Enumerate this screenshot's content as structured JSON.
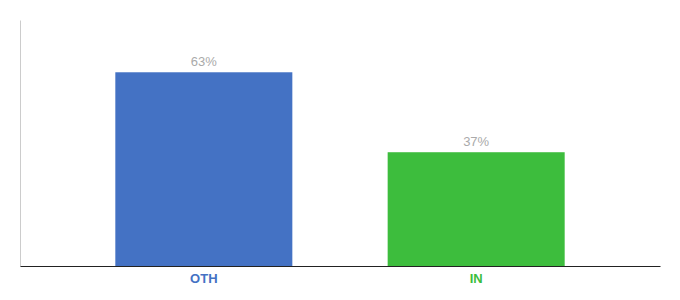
{
  "chart_data": {
    "type": "bar",
    "categories": [
      "OTH",
      "IN"
    ],
    "values": [
      63,
      37
    ],
    "colors": [
      "#4472C4",
      "#3DBD3D"
    ],
    "value_labels": [
      "63%",
      "37%"
    ],
    "data_labels": true,
    "ylim": [
      0,
      80
    ],
    "tick_labels": "x",
    "grid": false
  }
}
